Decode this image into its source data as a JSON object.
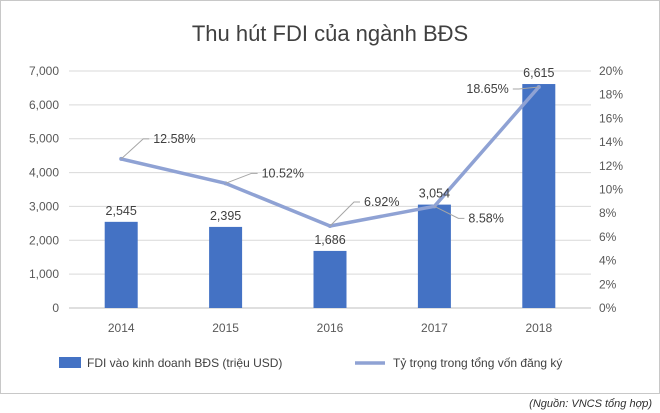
{
  "chart_data": {
    "type": "bar",
    "title": "Thu hút FDI của ngành BĐS",
    "categories": [
      "2014",
      "2015",
      "2016",
      "2017",
      "2018"
    ],
    "series": [
      {
        "name": "FDI vào kinh doanh BĐS (triệu USD)",
        "type": "bar",
        "axis": "left",
        "values": [
          2545,
          2395,
          1686,
          3054,
          6615
        ],
        "labels": [
          "2,545",
          "2,395",
          "1,686",
          "3,054",
          "6,615"
        ],
        "color": "#4472c4"
      },
      {
        "name": "Tỷ trọng trong tổng vốn đăng ký",
        "type": "line",
        "axis": "right",
        "values": [
          12.58,
          10.52,
          6.92,
          8.58,
          18.65
        ],
        "labels": [
          "12.58%",
          "10.52%",
          "6.92%",
          "8.58%",
          "18.65%"
        ],
        "color": "#8fa2d4"
      }
    ],
    "y_left": {
      "ylim": [
        0,
        7000
      ],
      "ticks": [
        0,
        1000,
        2000,
        3000,
        4000,
        5000,
        6000,
        7000
      ],
      "tick_labels": [
        "0",
        "1,000",
        "2,000",
        "3,000",
        "4,000",
        "5,000",
        "6,000",
        "7,000"
      ]
    },
    "y_right": {
      "ylim": [
        0,
        20
      ],
      "ticks": [
        0,
        2,
        4,
        6,
        8,
        10,
        12,
        14,
        16,
        18,
        20
      ],
      "tick_labels": [
        "0%",
        "2%",
        "4%",
        "6%",
        "8%",
        "10%",
        "12%",
        "14%",
        "16%",
        "18%",
        "20%"
      ]
    },
    "grid": true,
    "legend_position": "bottom"
  },
  "source_note": "(Nguồn: VNCS tổng hợp)"
}
